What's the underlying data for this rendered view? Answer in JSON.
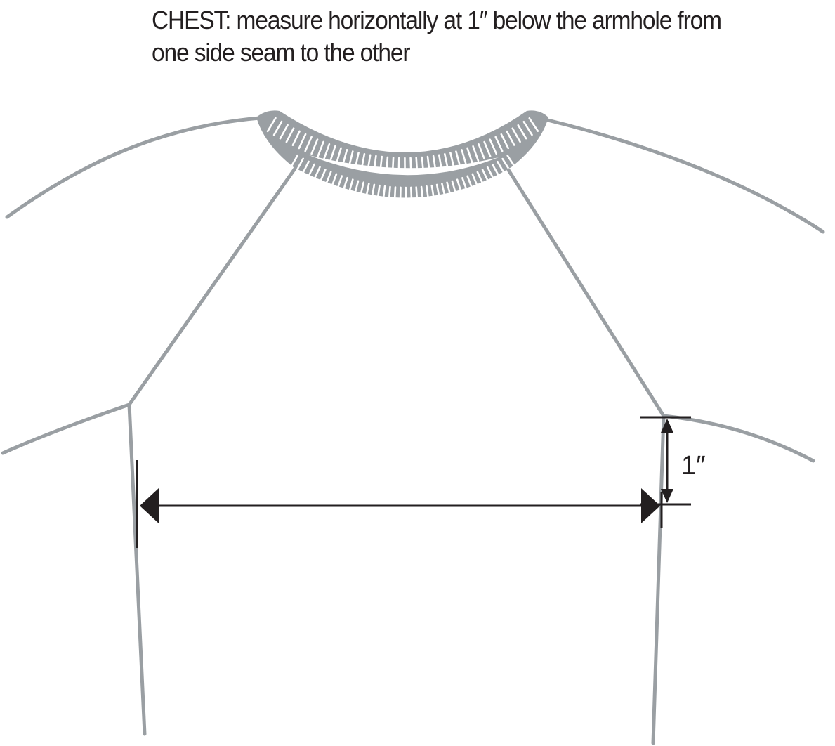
{
  "caption": {
    "line1": "CHEST:  measure horizontally at 1″ below the armhole from",
    "line2": "one side seam to the other"
  },
  "measurement": {
    "offset_label": "1″"
  },
  "colors": {
    "garment_outline": "#9a9fa3",
    "dimension_ink": "#231f20",
    "background": "#ffffff"
  }
}
